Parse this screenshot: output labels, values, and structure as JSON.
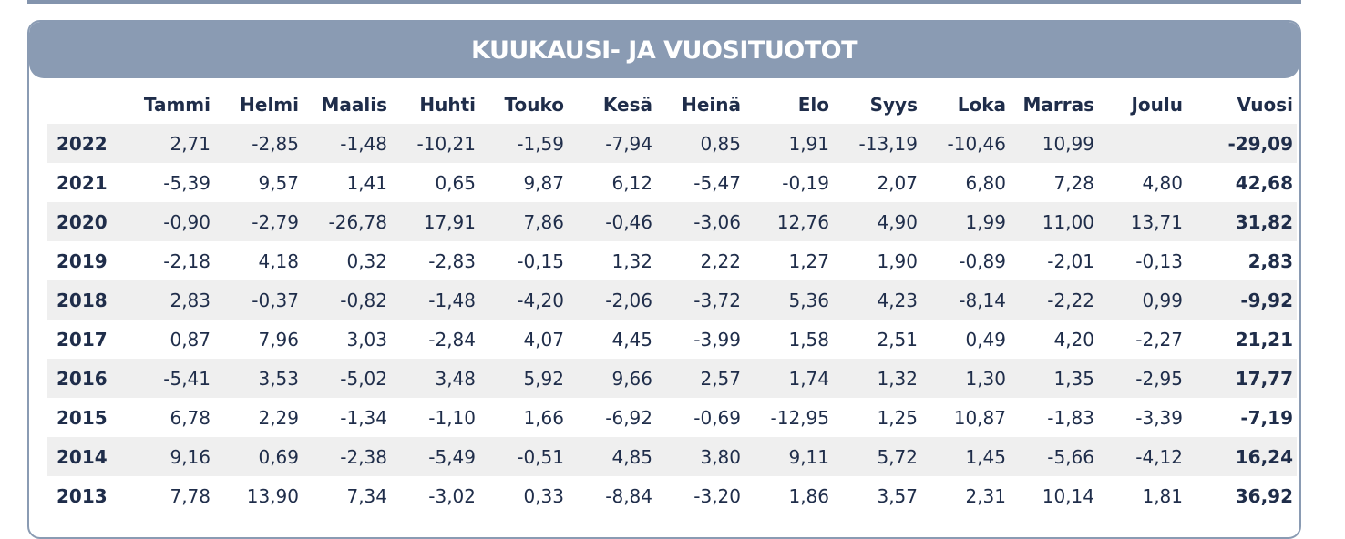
{
  "title": "KUUKAUSI- JA VUOSITUOTOT",
  "columns": [
    "",
    "Tammi",
    "Helmi",
    "Maalis",
    "Huhti",
    "Touko",
    "Kesä",
    "Heinä",
    "Elo",
    "Syys",
    "Loka",
    "Marras",
    "Joulu",
    "Vuosi"
  ],
  "rows": [
    {
      "year": "2022",
      "values": [
        "2,71",
        "-2,85",
        "-1,48",
        "-10,21",
        "-1,59",
        "-7,94",
        "0,85",
        "1,91",
        "-13,19",
        "-10,46",
        "10,99",
        ""
      ],
      "total": "-29,09"
    },
    {
      "year": "2021",
      "values": [
        "-5,39",
        "9,57",
        "1,41",
        "0,65",
        "9,87",
        "6,12",
        "-5,47",
        "-0,19",
        "2,07",
        "6,80",
        "7,28",
        "4,80"
      ],
      "total": "42,68"
    },
    {
      "year": "2020",
      "values": [
        "-0,90",
        "-2,79",
        "-26,78",
        "17,91",
        "7,86",
        "-0,46",
        "-3,06",
        "12,76",
        "4,90",
        "1,99",
        "11,00",
        "13,71"
      ],
      "total": "31,82"
    },
    {
      "year": "2019",
      "values": [
        "-2,18",
        "4,18",
        "0,32",
        "-2,83",
        "-0,15",
        "1,32",
        "2,22",
        "1,27",
        "1,90",
        "-0,89",
        "-2,01",
        "-0,13"
      ],
      "total": "2,83"
    },
    {
      "year": "2018",
      "values": [
        "2,83",
        "-0,37",
        "-0,82",
        "-1,48",
        "-4,20",
        "-2,06",
        "-3,72",
        "5,36",
        "4,23",
        "-8,14",
        "-2,22",
        "0,99"
      ],
      "total": "-9,92"
    },
    {
      "year": "2017",
      "values": [
        "0,87",
        "7,96",
        "3,03",
        "-2,84",
        "4,07",
        "4,45",
        "-3,99",
        "1,58",
        "2,51",
        "0,49",
        "4,20",
        "-2,27"
      ],
      "total": "21,21"
    },
    {
      "year": "2016",
      "values": [
        "-5,41",
        "3,53",
        "-5,02",
        "3,48",
        "5,92",
        "9,66",
        "2,57",
        "1,74",
        "1,32",
        "1,30",
        "1,35",
        "-2,95"
      ],
      "total": "17,77"
    },
    {
      "year": "2015",
      "values": [
        "6,78",
        "2,29",
        "-1,34",
        "-1,10",
        "1,66",
        "-6,92",
        "-0,69",
        "-12,95",
        "1,25",
        "10,87",
        "-1,83",
        "-3,39"
      ],
      "total": "-7,19"
    },
    {
      "year": "2014",
      "values": [
        "9,16",
        "0,69",
        "-2,38",
        "-5,49",
        "-0,51",
        "4,85",
        "3,80",
        "9,11",
        "5,72",
        "1,45",
        "-5,66",
        "-4,12"
      ],
      "total": "16,24"
    },
    {
      "year": "2013",
      "values": [
        "7,78",
        "13,90",
        "7,34",
        "-3,02",
        "0,33",
        "-8,84",
        "-3,20",
        "1,86",
        "3,57",
        "2,31",
        "10,14",
        "1,81"
      ],
      "total": "36,92"
    }
  ],
  "colors": {
    "header_bg": "#8a9bb3",
    "text": "#1f2d4a",
    "stripe": "#efefef"
  }
}
